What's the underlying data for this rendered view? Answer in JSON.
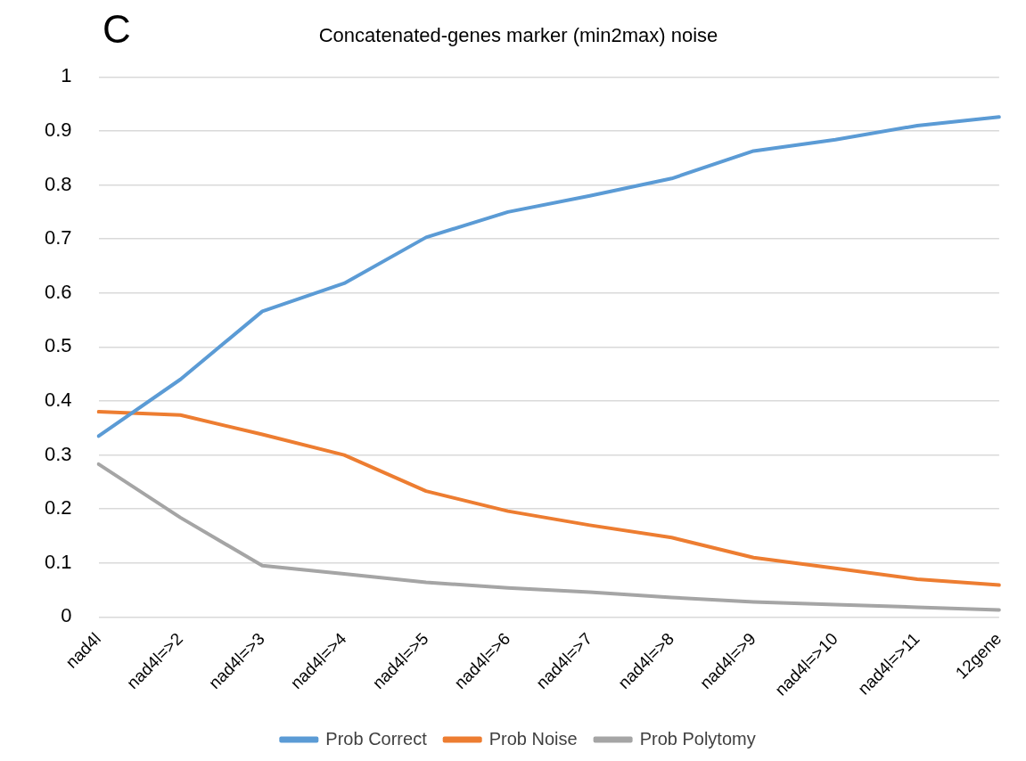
{
  "chart_data": {
    "type": "line",
    "title": "Concatenated-genes marker (min2max) noise",
    "annotations": [
      "C"
    ],
    "categories": [
      "nad4l",
      "nad4l=>2",
      "nad4l=>3",
      "nad4l=>4",
      "nad4l=>5",
      "nad4l=>6",
      "nad4l=>7",
      "nad4l=>8",
      "nad4l=>9",
      "nad4l=>10",
      "nad4l=>11",
      "12gene"
    ],
    "series": [
      {
        "name": "Prob Correct",
        "color": "#5b9bd5",
        "values": [
          0.335,
          0.44,
          0.566,
          0.618,
          0.703,
          0.75,
          0.78,
          0.812,
          0.863,
          0.884,
          0.91,
          0.926
        ]
      },
      {
        "name": "Prob Noise",
        "color": "#ed7d31",
        "values": [
          0.38,
          0.374,
          0.338,
          0.3,
          0.233,
          0.196,
          0.17,
          0.147,
          0.11,
          0.09,
          0.07,
          0.059
        ]
      },
      {
        "name": "Prob Polytomy",
        "color": "#a5a5a5",
        "values": [
          0.283,
          0.184,
          0.095,
          0.08,
          0.064,
          0.054,
          0.046,
          0.036,
          0.028,
          0.023,
          0.018,
          0.013
        ]
      }
    ],
    "ylim": [
      0,
      1
    ],
    "yticks": [
      0,
      0.1,
      0.2,
      0.3,
      0.4,
      0.5,
      0.6,
      0.7,
      0.8,
      0.9,
      1
    ],
    "grid": "y",
    "legend": "bottom",
    "marker": "none",
    "line_style": "solid"
  }
}
